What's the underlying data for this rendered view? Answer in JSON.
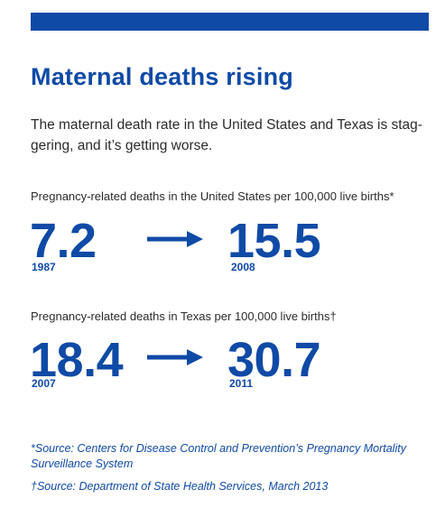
{
  "title": "Maternal deaths rising",
  "intro": "The maternal death rate in the United States and Texas is stag- gering, and it’s getting worse.",
  "us": {
    "label": "Pregnancy-related deaths in the United States per 100,000 live births*",
    "from_value": "7.2",
    "from_year": "1987",
    "to_value": "15.5",
    "to_year": "2008"
  },
  "texas": {
    "label": "Pregnancy-related deaths in Texas per 100,000 live births†",
    "from_value": "18.4",
    "from_year": "2007",
    "to_value": "30.7",
    "to_year": "2011"
  },
  "sources": {
    "first": "*Source: Centers for Disease Control and Prevention’s Pregnancy Mortality Surveillance System",
    "second": "†Source: Department of State Health Services, March 2013"
  },
  "colors": {
    "accent": "#0f4aa6"
  },
  "icons": {
    "arrow": "right-arrow-icon"
  }
}
